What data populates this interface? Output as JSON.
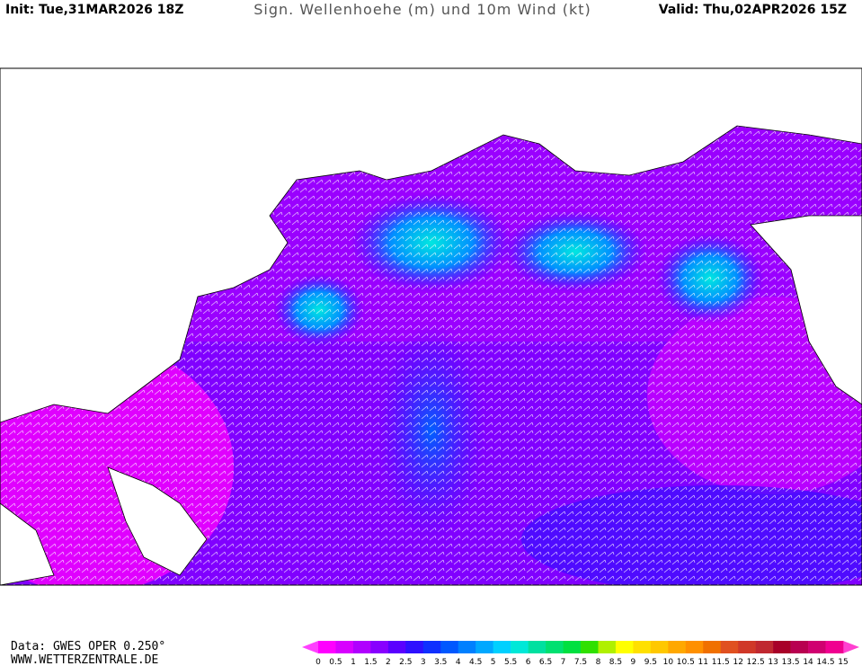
{
  "header": {
    "init": "Init: Tue,31MAR2026 18Z",
    "title": "Sign. Wellenhoehe (m) und 10m Wind (kt)",
    "valid": "Valid: Thu,02APR2026 15Z"
  },
  "footer": {
    "data": "Data: GWES OPER 0.250°",
    "website": "WWW.WETTERZENTRALE.DE"
  },
  "legend": {
    "ticks": [
      0,
      0.5,
      1,
      1.5,
      2,
      2.5,
      3,
      3.5,
      4,
      4.5,
      5,
      5.5,
      6,
      6.5,
      7,
      7.5,
      8,
      8.5,
      9,
      9.5,
      10,
      10.5,
      11,
      11.5,
      12,
      12.5,
      13,
      13.5,
      14,
      14.5,
      15
    ],
    "under_color": "#ff40ff",
    "over_color": "#ff40d0",
    "colors": [
      "#ff00ff",
      "#d800ff",
      "#b000ff",
      "#8800ff",
      "#5a00ff",
      "#2e10ff",
      "#1030ff",
      "#0058ff",
      "#0080ff",
      "#00a8ff",
      "#00d0ff",
      "#00e8d8",
      "#00e0a0",
      "#00e070",
      "#00e040",
      "#30e000",
      "#b0f000",
      "#ffff00",
      "#ffe000",
      "#ffc800",
      "#ffa800",
      "#ff9000",
      "#f07000",
      "#e05020",
      "#d03828",
      "#c02830",
      "#a80028",
      "#b80050",
      "#d00070",
      "#f00090"
    ]
  }
}
